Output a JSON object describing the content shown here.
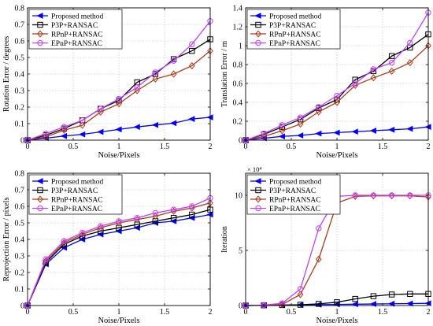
{
  "chart_data": [
    {
      "type": "line",
      "title": "",
      "xlabel": "Noise/Pixels",
      "ylabel": "Rotation Error / degrees",
      "xlim": [
        0,
        2
      ],
      "ylim": [
        0,
        0.8
      ],
      "xticks": [
        0,
        0.5,
        1,
        1.5,
        2
      ],
      "xtick_labels": [
        "0",
        "0.5",
        "1",
        "1.5",
        "2"
      ],
      "yticks": [
        0,
        0.1,
        0.2,
        0.3,
        0.4,
        0.5,
        0.6,
        0.7,
        0.8
      ],
      "ytick_labels": [
        "0",
        "0.1",
        "0.2",
        "0.3",
        "0.4",
        "0.5",
        "0.6",
        "0.7",
        "0.8"
      ],
      "exponent_label": "",
      "grid": true,
      "legend": "top-left",
      "x": [
        0,
        0.2,
        0.4,
        0.6,
        0.8,
        1.0,
        1.2,
        1.4,
        1.6,
        1.8,
        2.0
      ],
      "series": [
        {
          "name": "Proposed method",
          "color": "#0000ff",
          "marker": "triangle-left",
          "values": [
            0,
            0.012,
            0.025,
            0.035,
            0.05,
            0.065,
            0.08,
            0.092,
            0.103,
            0.128,
            0.138
          ]
        },
        {
          "name": "P3P+RANSAC",
          "color": "#000000",
          "marker": "square",
          "values": [
            0,
            0.03,
            0.07,
            0.12,
            0.19,
            0.24,
            0.35,
            0.4,
            0.49,
            0.54,
            0.61
          ]
        },
        {
          "name": "RPnP+RANSAC",
          "color": "#b03a1a",
          "marker": "diamond",
          "values": [
            0,
            0.02,
            0.06,
            0.09,
            0.17,
            0.22,
            0.3,
            0.37,
            0.4,
            0.45,
            0.54
          ]
        },
        {
          "name": "EPnP+RANSAC",
          "color": "#c040ff",
          "marker": "circle",
          "values": [
            0,
            0.04,
            0.08,
            0.12,
            0.19,
            0.25,
            0.32,
            0.41,
            0.48,
            0.58,
            0.72
          ]
        }
      ]
    },
    {
      "type": "line",
      "title": "",
      "xlabel": "Noise/Pixels",
      "ylabel": "Translation Error / m",
      "xlim": [
        0,
        2
      ],
      "ylim": [
        0,
        1.4
      ],
      "xticks": [
        0,
        0.5,
        1,
        1.5,
        2
      ],
      "xtick_labels": [
        "0",
        "0.5",
        "1",
        "1.5",
        "2"
      ],
      "yticks": [
        0,
        0.2,
        0.4,
        0.6,
        0.8,
        1.0,
        1.2,
        1.4
      ],
      "ytick_labels": [
        "0",
        "0.2",
        "0.4",
        "0.6",
        "0.8",
        "1",
        "1.2",
        "1.4"
      ],
      "exponent_label": "",
      "grid": true,
      "legend": "top-left",
      "x": [
        0,
        0.2,
        0.4,
        0.6,
        0.8,
        1.0,
        1.2,
        1.4,
        1.6,
        1.8,
        2.0
      ],
      "series": [
        {
          "name": "Proposed method",
          "color": "#0000ff",
          "marker": "triangle-left",
          "values": [
            0,
            0.02,
            0.04,
            0.05,
            0.07,
            0.08,
            0.09,
            0.1,
            0.11,
            0.12,
            0.14
          ]
        },
        {
          "name": "P3P+RANSAC",
          "color": "#000000",
          "marker": "square",
          "values": [
            0,
            0.06,
            0.14,
            0.22,
            0.34,
            0.43,
            0.64,
            0.73,
            0.89,
            0.98,
            1.12
          ]
        },
        {
          "name": "RPnP+RANSAC",
          "color": "#b03a1a",
          "marker": "diamond",
          "values": [
            0,
            0.04,
            0.1,
            0.17,
            0.3,
            0.4,
            0.58,
            0.66,
            0.73,
            0.82,
            1.0
          ]
        },
        {
          "name": "EPnP+RANSAC",
          "color": "#c040ff",
          "marker": "circle",
          "values": [
            0,
            0.07,
            0.16,
            0.24,
            0.35,
            0.47,
            0.6,
            0.75,
            0.82,
            1.03,
            1.35
          ]
        }
      ]
    },
    {
      "type": "line",
      "title": "",
      "xlabel": "Noise/Pixels",
      "ylabel": "Reprojection Error / pixels",
      "xlim": [
        0,
        2
      ],
      "ylim": [
        0,
        0.8
      ],
      "xticks": [
        0,
        0.5,
        1,
        1.5,
        2
      ],
      "xtick_labels": [
        "0",
        "0.5",
        "1",
        "1.5",
        "2"
      ],
      "yticks": [
        0,
        0.1,
        0.2,
        0.3,
        0.4,
        0.5,
        0.6,
        0.7,
        0.8
      ],
      "ytick_labels": [
        "0",
        "0.1",
        "0.2",
        "0.3",
        "0.4",
        "0.5",
        "0.6",
        "0.7",
        "0.8"
      ],
      "exponent_label": "",
      "grid": true,
      "legend": "top-left",
      "x": [
        0,
        0.2,
        0.4,
        0.6,
        0.8,
        1.0,
        1.2,
        1.4,
        1.6,
        1.8,
        2.0
      ],
      "series": [
        {
          "name": "Proposed method",
          "color": "#0000ff",
          "marker": "triangle-left",
          "values": [
            0,
            0.25,
            0.35,
            0.4,
            0.43,
            0.45,
            0.47,
            0.5,
            0.51,
            0.53,
            0.55
          ]
        },
        {
          "name": "P3P+RANSAC",
          "color": "#000000",
          "marker": "square",
          "values": [
            0,
            0.26,
            0.37,
            0.42,
            0.45,
            0.47,
            0.49,
            0.51,
            0.53,
            0.55,
            0.58
          ]
        },
        {
          "name": "RPnP+RANSAC",
          "color": "#b03a1a",
          "marker": "diamond",
          "values": [
            0,
            0.27,
            0.38,
            0.43,
            0.47,
            0.5,
            0.52,
            0.54,
            0.57,
            0.59,
            0.62
          ]
        },
        {
          "name": "EPnP+RANSAC",
          "color": "#c040ff",
          "marker": "circle",
          "values": [
            0,
            0.28,
            0.39,
            0.44,
            0.48,
            0.51,
            0.53,
            0.56,
            0.58,
            0.6,
            0.65
          ]
        }
      ]
    },
    {
      "type": "line",
      "title": "",
      "xlabel": "Noise/Pixels",
      "ylabel": "Iteration",
      "xlim": [
        0,
        2
      ],
      "ylim": [
        0,
        12
      ],
      "xticks": [
        0,
        0.5,
        1,
        1.5,
        2
      ],
      "xtick_labels": [
        "0",
        "0.5",
        "1",
        "1.5",
        "2"
      ],
      "yticks": [
        0,
        5,
        10
      ],
      "ytick_labels": [
        "0",
        "5",
        "10"
      ],
      "exponent_label": "× 10⁴",
      "grid": true,
      "legend": "top-left",
      "x": [
        0,
        0.2,
        0.4,
        0.6,
        0.8,
        1.0,
        1.2,
        1.4,
        1.6,
        1.8,
        2.0
      ],
      "series": [
        {
          "name": "Proposed method",
          "color": "#0000ff",
          "marker": "triangle-left",
          "values": [
            0,
            0.02,
            0.04,
            0.06,
            0.08,
            0.1,
            0.12,
            0.14,
            0.16,
            0.18,
            0.2
          ]
        },
        {
          "name": "P3P+RANSAC",
          "color": "#000000",
          "marker": "square",
          "values": [
            0,
            0.02,
            0.04,
            0.07,
            0.15,
            0.3,
            0.6,
            0.85,
            1.0,
            1.05,
            1.05
          ]
        },
        {
          "name": "RPnP+RANSAC",
          "color": "#b03a1a",
          "marker": "diamond",
          "values": [
            0,
            0.03,
            0.1,
            1.0,
            4.2,
            9.3,
            9.9,
            9.95,
            9.95,
            9.95,
            9.85
          ]
        },
        {
          "name": "EPnP+RANSAC",
          "color": "#c040ff",
          "marker": "circle",
          "values": [
            0,
            0.04,
            0.2,
            1.5,
            7.0,
            9.9,
            10.0,
            10.0,
            10.0,
            10.0,
            10.0
          ]
        }
      ]
    }
  ]
}
